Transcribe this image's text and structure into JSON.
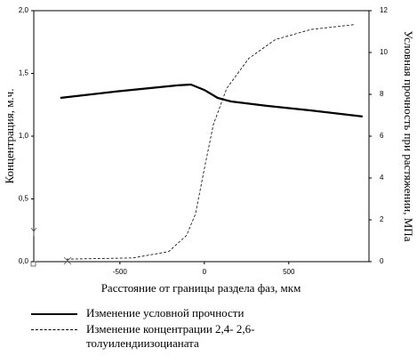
{
  "chart_data": {
    "type": "line",
    "xlabel": "Расстояние от границы раздела фаз, мкм",
    "ylabel": "Концентрация, м.ч.",
    "y2label": "Условная прочность при растяжении, МПа",
    "xlim": [
      -1010,
      975
    ],
    "xticks": [
      -500,
      0,
      500
    ],
    "ylim": [
      0,
      2
    ],
    "yticks": [
      {
        "value": 0,
        "label": "0,0"
      },
      {
        "value": 0.5,
        "label": "0,5"
      },
      {
        "value": 1,
        "label": "1,0"
      },
      {
        "value": 1.5,
        "label": "1,5"
      },
      {
        "value": 2,
        "label": "2,0"
      }
    ],
    "y2lim": [
      0,
      12
    ],
    "y2ticks": [
      0,
      2,
      4,
      6,
      8,
      10,
      12
    ],
    "series": [
      {
        "name": "Изменение условной прочности",
        "color": "#000000",
        "axis": "y2",
        "dash": false,
        "x": [
          -853,
          -526,
          -158,
          -79,
          0,
          79,
          158,
          368,
          632,
          937
        ],
        "values": [
          7.83,
          8.13,
          8.43,
          8.47,
          8.21,
          7.83,
          7.66,
          7.45,
          7.23,
          6.94
        ]
      },
      {
        "name": "Изменение концентрации 2,4- 2,6-толуилендиизоцианата",
        "color": "#000000",
        "axis": "y",
        "dash": true,
        "x": [
          -816,
          -421,
          -211,
          -105,
          -53,
          0,
          53,
          132,
          263,
          421,
          632,
          895
        ],
        "values": [
          0.02,
          0.03,
          0.08,
          0.21,
          0.38,
          0.74,
          1.09,
          1.38,
          1.62,
          1.77,
          1.85,
          1.89
        ]
      }
    ]
  }
}
